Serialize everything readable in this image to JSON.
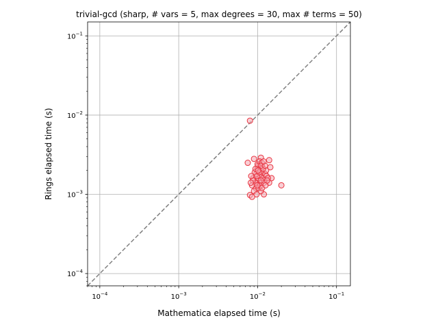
{
  "chart_data": {
    "type": "scatter",
    "title": "trivial-gcd (sharp, # vars = 5, max degrees = 30, max # terms = 50)",
    "xlabel": "Mathematica elapsed time (s)",
    "ylabel": "Rings elapsed time (s)",
    "xscale": "log",
    "yscale": "log",
    "xlim": [
      7e-05,
      0.15
    ],
    "ylim": [
      7e-05,
      0.15
    ],
    "grid": true,
    "reference_line": "y = x (dashed, gray)",
    "marker": {
      "shape": "circle",
      "fill": "#f4a6b0",
      "edge": "#e8333f",
      "alpha": 0.55
    },
    "ticks": [
      {
        "value": 0.0001,
        "base": "10",
        "exp": "−4"
      },
      {
        "value": 0.001,
        "base": "10",
        "exp": "−3"
      },
      {
        "value": 0.01,
        "base": "10",
        "exp": "−2"
      },
      {
        "value": 0.1,
        "base": "10",
        "exp": "−1"
      }
    ],
    "points": [
      [
        0.008,
        0.0085
      ],
      [
        0.0075,
        0.0025
      ],
      [
        0.009,
        0.0028
      ],
      [
        0.02,
        0.0013
      ],
      [
        0.014,
        0.0027
      ],
      [
        0.015,
        0.0016
      ],
      [
        0.011,
        0.0029
      ],
      [
        0.008,
        0.00098
      ],
      [
        0.0085,
        0.00093
      ],
      [
        0.012,
        0.001
      ],
      [
        0.011,
        0.0011
      ],
      [
        0.0095,
        0.0012
      ],
      [
        0.01,
        0.0013
      ],
      [
        0.0105,
        0.0014
      ],
      [
        0.0098,
        0.0015
      ],
      [
        0.0102,
        0.0016
      ],
      [
        0.0108,
        0.0017
      ],
      [
        0.0096,
        0.0018
      ],
      [
        0.0112,
        0.0019
      ],
      [
        0.0104,
        0.002
      ],
      [
        0.0099,
        0.0021
      ],
      [
        0.0115,
        0.0022
      ],
      [
        0.0101,
        0.0023
      ],
      [
        0.0107,
        0.0024
      ],
      [
        0.0093,
        0.0014
      ],
      [
        0.0118,
        0.0016
      ],
      [
        0.0125,
        0.0018
      ],
      [
        0.0122,
        0.0015
      ],
      [
        0.013,
        0.0017
      ],
      [
        0.0128,
        0.002
      ],
      [
        0.0135,
        0.0016
      ],
      [
        0.014,
        0.0014
      ],
      [
        0.0088,
        0.0016
      ],
      [
        0.0085,
        0.0013
      ],
      [
        0.009,
        0.0011
      ],
      [
        0.0092,
        0.0019
      ],
      [
        0.01,
        0.0024
      ],
      [
        0.0106,
        0.0026
      ],
      [
        0.0113,
        0.0025
      ],
      [
        0.0117,
        0.0021
      ],
      [
        0.0097,
        0.001
      ],
      [
        0.0103,
        0.0012
      ],
      [
        0.0109,
        0.0013
      ],
      [
        0.0114,
        0.0012
      ],
      [
        0.012,
        0.0014
      ],
      [
        0.0126,
        0.0013
      ],
      [
        0.0132,
        0.0015
      ],
      [
        0.0145,
        0.0022
      ],
      [
        0.011,
        0.0015
      ],
      [
        0.0098,
        0.0017
      ],
      [
        0.0105,
        0.0019
      ],
      [
        0.0111,
        0.0023
      ],
      [
        0.0094,
        0.0021
      ],
      [
        0.0087,
        0.0015
      ],
      [
        0.0082,
        0.0014
      ],
      [
        0.0083,
        0.0017
      ],
      [
        0.0124,
        0.0023
      ],
      [
        0.0119,
        0.0026
      ],
      [
        0.0101,
        0.002
      ],
      [
        0.0099,
        0.0013
      ]
    ]
  }
}
